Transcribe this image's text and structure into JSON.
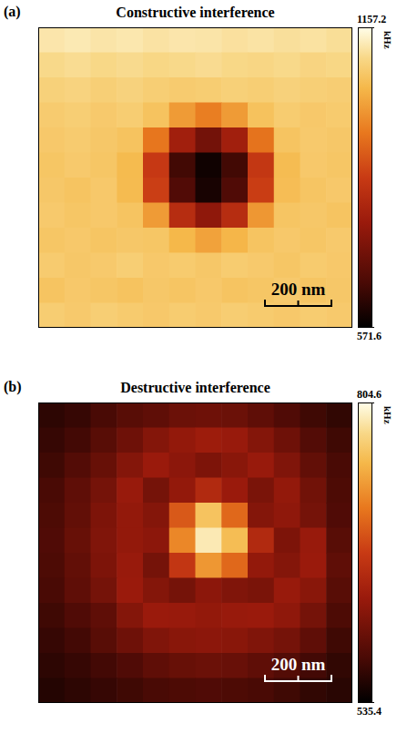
{
  "chart_data": [
    {
      "type": "heatmap",
      "panel": "(a)",
      "title": "Constructive interference",
      "tick_labels": false,
      "scale_bar": "200 nm",
      "colorbar": {
        "range": [
          571.6,
          1157.2
        ],
        "ticks": [
          571.6,
          1157.2
        ],
        "label": "kHz"
      },
      "cells": [
        [
          1120,
          1125,
          1118,
          1122,
          1115,
          1120,
          1118,
          1112,
          1116,
          1110,
          1114,
          1108
        ],
        [
          1100,
          1105,
          1098,
          1102,
          1096,
          1100,
          1104,
          1098,
          1095,
          1100,
          1092,
          1096
        ],
        [
          1085,
          1090,
          1082,
          1088,
          1080,
          1075,
          1078,
          1084,
          1080,
          1086,
          1082,
          1079
        ],
        [
          1075,
          1080,
          1072,
          1078,
          1060,
          1000,
          960,
          1000,
          1058,
          1076,
          1070,
          1074
        ],
        [
          1070,
          1075,
          1068,
          1060,
          950,
          790,
          720,
          790,
          945,
          1062,
          1072,
          1068
        ],
        [
          1065,
          1072,
          1066,
          1045,
          860,
          650,
          590,
          650,
          855,
          1048,
          1070,
          1066
        ],
        [
          1068,
          1062,
          1070,
          1046,
          870,
          670,
          600,
          668,
          868,
          1050,
          1064,
          1070
        ],
        [
          1072,
          1066,
          1070,
          1062,
          1000,
          830,
          760,
          830,
          995,
          1064,
          1068,
          1062
        ],
        [
          1066,
          1070,
          1064,
          1068,
          1066,
          1040,
          1010,
          1038,
          1062,
          1070,
          1066,
          1072
        ],
        [
          1075,
          1068,
          1072,
          1080,
          1070,
          1074,
          1068,
          1076,
          1072,
          1066,
          1074,
          1070
        ],
        [
          1062,
          1070,
          1066,
          1060,
          1068,
          1064,
          1070,
          1062,
          1066,
          1072,
          1064,
          1068
        ],
        [
          1078,
          1072,
          1080,
          1074,
          1070,
          1076,
          1072,
          1078,
          1074,
          1070,
          1076,
          1072
        ]
      ]
    },
    {
      "type": "heatmap",
      "panel": "(b)",
      "title": "Destructive interference",
      "tick_labels": false,
      "scale_bar": "200 nm",
      "colorbar": {
        "range": [
          535.4,
          804.6
        ],
        "ticks": [
          535.4,
          804.6
        ],
        "label": "kHz"
      },
      "cells": [
        [
          560,
          565,
          575,
          585,
          590,
          598,
          600,
          598,
          590,
          580,
          570,
          562
        ],
        [
          565,
          572,
          585,
          600,
          615,
          625,
          632,
          628,
          615,
          600,
          582,
          570
        ],
        [
          570,
          582,
          595,
          615,
          630,
          620,
          610,
          618,
          628,
          612,
          592,
          575
        ],
        [
          575,
          590,
          605,
          628,
          605,
          625,
          650,
          630,
          608,
          625,
          602,
          578
        ],
        [
          578,
          592,
          610,
          625,
          615,
          690,
          760,
          700,
          615,
          622,
          605,
          580
        ],
        [
          580,
          595,
          612,
          625,
          620,
          720,
          790,
          755,
          650,
          610,
          628,
          585
        ],
        [
          578,
          592,
          610,
          628,
          605,
          665,
          730,
          700,
          625,
          615,
          630,
          590
        ],
        [
          575,
          590,
          605,
          630,
          615,
          605,
          620,
          612,
          608,
          628,
          618,
          585
        ],
        [
          570,
          580,
          590,
          615,
          630,
          628,
          625,
          628,
          630,
          622,
          605,
          578
        ],
        [
          565,
          572,
          585,
          600,
          612,
          618,
          620,
          618,
          612,
          605,
          590,
          570
        ],
        [
          560,
          565,
          572,
          580,
          590,
          595,
          598,
          596,
          590,
          582,
          572,
          562
        ],
        [
          555,
          560,
          565,
          570,
          575,
          578,
          580,
          578,
          575,
          570,
          562,
          558
        ]
      ]
    }
  ]
}
